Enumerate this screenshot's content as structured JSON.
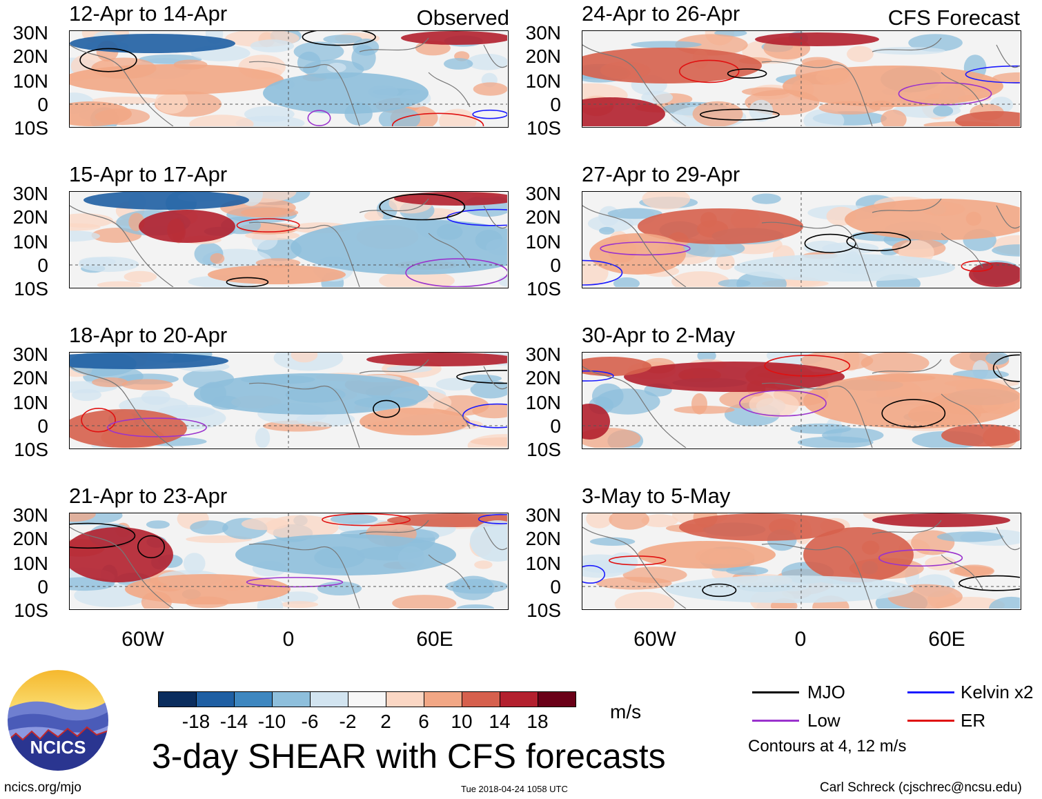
{
  "columns": {
    "left_tag": "Observed",
    "right_tag": "CFS Forecast"
  },
  "panels": [
    {
      "title": "12-Apr to 14-Apr"
    },
    {
      "title": "15-Apr to 17-Apr"
    },
    {
      "title": "18-Apr to 20-Apr"
    },
    {
      "title": "21-Apr to 23-Apr"
    },
    {
      "title": "24-Apr to 26-Apr"
    },
    {
      "title": "27-Apr to 29-Apr"
    },
    {
      "title": "30-Apr to 2-May"
    },
    {
      "title": "3-May to 5-May"
    }
  ],
  "lat_labels": [
    "30N",
    "20N",
    "10N",
    "0",
    "10S"
  ],
  "lon_labels": [
    "60W",
    "0",
    "60E"
  ],
  "colorbar": {
    "colors": [
      "#0b2d5e",
      "#1f5fa3",
      "#3e87c0",
      "#8ebfdc",
      "#d2e4f0",
      "#f7f7f7",
      "#fbd7c4",
      "#f2a785",
      "#d6604d",
      "#b3202e",
      "#6a0017"
    ],
    "labels": [
      "-18",
      "-14",
      "-10",
      "-6",
      "-2",
      "2",
      "6",
      "10",
      "14",
      "18"
    ],
    "units": "m/s"
  },
  "title": "3-day SHEAR with CFS forecasts",
  "legend": {
    "items": [
      {
        "label": "MJO",
        "color": "#000000"
      },
      {
        "label": "Kelvin x2",
        "color": "#1a1aff"
      },
      {
        "label": "Low",
        "color": "#9a32cd"
      },
      {
        "label": "ER",
        "color": "#e01010"
      }
    ],
    "note": "Contours at 4, 12 m/s"
  },
  "logo": {
    "text": "NCICS"
  },
  "footer": {
    "url": "ncics.org/mjo",
    "timestamp": "Tue 2018-04-24 1058 UTC",
    "author": "Carl Schreck (cjschrec@ncsu.edu)"
  }
}
